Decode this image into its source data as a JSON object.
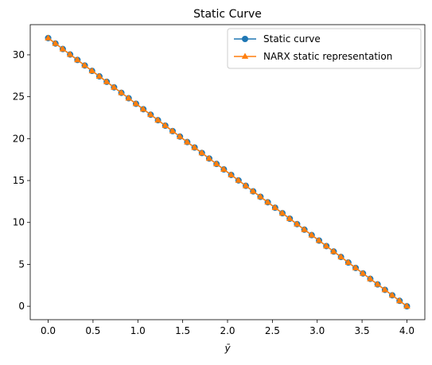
{
  "chart_data": {
    "type": "line",
    "title": "Static Curve",
    "xlabel": "ȳ",
    "ylabel": "",
    "xlim": [
      -0.2,
      4.2
    ],
    "ylim": [
      -1.6,
      33.6
    ],
    "x_ticks": [
      "0.0",
      "0.5",
      "1.0",
      "1.5",
      "2.0",
      "2.5",
      "3.0",
      "3.5",
      "4.0"
    ],
    "y_ticks": [
      "0",
      "5",
      "10",
      "15",
      "20",
      "25",
      "30"
    ],
    "grid": false,
    "legend_position": "top-right",
    "x": [
      0.0,
      0.0816,
      0.1633,
      0.2449,
      0.3265,
      0.4082,
      0.4898,
      0.5714,
      0.6531,
      0.7347,
      0.8163,
      0.898,
      0.9796,
      1.0612,
      1.1429,
      1.2245,
      1.3061,
      1.3878,
      1.4694,
      1.551,
      1.6327,
      1.7143,
      1.7959,
      1.8776,
      1.9592,
      2.0408,
      2.1224,
      2.2041,
      2.2857,
      2.3673,
      2.449,
      2.5306,
      2.6122,
      2.6939,
      2.7755,
      2.8571,
      2.9388,
      3.0204,
      3.102,
      3.1837,
      3.2653,
      3.3469,
      3.4286,
      3.5102,
      3.5918,
      3.6735,
      3.7551,
      3.8367,
      3.9184,
      4.0
    ],
    "series": [
      {
        "name": "Static curve",
        "color": "#1f77b4",
        "marker": "circle",
        "values": [
          32.0,
          31.35,
          30.69,
          30.04,
          29.39,
          28.73,
          28.08,
          27.43,
          26.78,
          26.12,
          25.47,
          24.82,
          24.16,
          23.51,
          22.86,
          22.2,
          21.55,
          20.9,
          20.24,
          19.59,
          18.94,
          18.29,
          17.63,
          16.98,
          16.33,
          15.67,
          15.02,
          14.37,
          13.71,
          13.06,
          12.41,
          11.76,
          11.1,
          10.45,
          9.8,
          9.14,
          8.49,
          7.84,
          7.18,
          6.53,
          5.88,
          5.22,
          4.57,
          3.92,
          3.27,
          2.61,
          1.96,
          1.31,
          0.65,
          0.0
        ]
      },
      {
        "name": "NARX static representation",
        "color": "#ff7f0e",
        "marker": "triangle",
        "values": [
          32.0,
          31.35,
          30.69,
          30.04,
          29.39,
          28.73,
          28.08,
          27.43,
          26.78,
          26.12,
          25.47,
          24.82,
          24.16,
          23.51,
          22.86,
          22.2,
          21.55,
          20.9,
          20.24,
          19.59,
          18.94,
          18.29,
          17.63,
          16.98,
          16.33,
          15.67,
          15.02,
          14.37,
          13.71,
          13.06,
          12.41,
          11.76,
          11.1,
          10.45,
          9.8,
          9.14,
          8.49,
          7.84,
          7.18,
          6.53,
          5.88,
          5.22,
          4.57,
          3.92,
          3.27,
          2.61,
          1.96,
          1.31,
          0.65,
          0.0
        ]
      }
    ]
  }
}
